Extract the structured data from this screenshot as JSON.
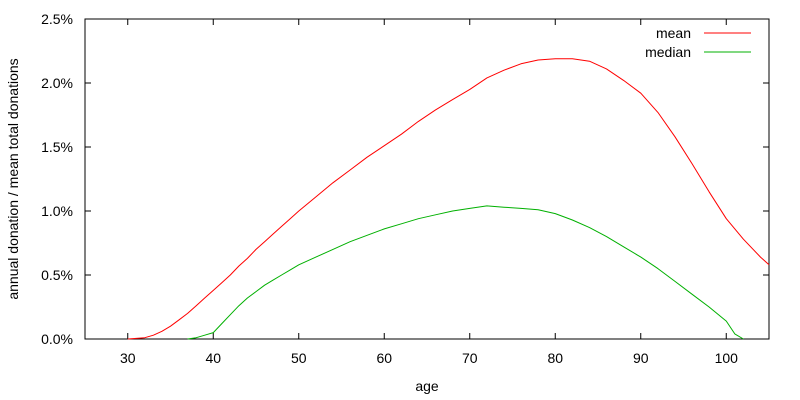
{
  "chart_data": {
    "type": "line",
    "title": "",
    "xlabel": "age",
    "ylabel": "annual donation / mean total donations",
    "xlim": [
      25,
      105
    ],
    "ylim": [
      0,
      2.5
    ],
    "x_ticks": [
      30,
      40,
      50,
      60,
      70,
      80,
      90,
      100
    ],
    "x_tick_labels": [
      "30",
      "40",
      "50",
      "60",
      "70",
      "80",
      "90",
      "100"
    ],
    "y_ticks": [
      0,
      0.5,
      1.0,
      1.5,
      2.0,
      2.5
    ],
    "y_tick_labels": [
      "0.0%",
      "0.5%",
      "1.0%",
      "1.5%",
      "2.0%",
      "2.5%"
    ],
    "grid": false,
    "legend_position": "top-right",
    "series": [
      {
        "name": "mean",
        "color": "#ff0000",
        "x": [
          30,
          31,
          32,
          33,
          34,
          35,
          36,
          37,
          38,
          39,
          40,
          41,
          42,
          43,
          44,
          45,
          46,
          47,
          48,
          49,
          50,
          52,
          54,
          56,
          58,
          60,
          62,
          64,
          66,
          68,
          70,
          72,
          74,
          76,
          78,
          80,
          81,
          82,
          84,
          86,
          88,
          90,
          92,
          94,
          96,
          98,
          100,
          102,
          104,
          105
        ],
        "values": [
          0.0,
          0.005,
          0.01,
          0.03,
          0.06,
          0.1,
          0.15,
          0.2,
          0.26,
          0.32,
          0.38,
          0.44,
          0.5,
          0.57,
          0.63,
          0.7,
          0.76,
          0.82,
          0.88,
          0.94,
          1.0,
          1.11,
          1.22,
          1.32,
          1.42,
          1.51,
          1.6,
          1.7,
          1.79,
          1.87,
          1.95,
          2.04,
          2.1,
          2.15,
          2.18,
          2.19,
          2.19,
          2.19,
          2.17,
          2.11,
          2.02,
          1.92,
          1.77,
          1.58,
          1.37,
          1.15,
          0.94,
          0.78,
          0.64,
          0.58
        ]
      },
      {
        "name": "median",
        "color": "#00b000",
        "x": [
          37,
          38,
          39,
          40,
          41,
          42,
          43,
          44,
          45,
          46,
          47,
          48,
          49,
          50,
          52,
          54,
          56,
          58,
          60,
          62,
          64,
          66,
          68,
          70,
          72,
          74,
          76,
          78,
          80,
          82,
          84,
          86,
          88,
          90,
          92,
          94,
          96,
          98,
          100,
          101,
          102
        ],
        "values": [
          0.0,
          0.01,
          0.03,
          0.05,
          0.12,
          0.19,
          0.26,
          0.32,
          0.37,
          0.42,
          0.46,
          0.5,
          0.54,
          0.58,
          0.64,
          0.7,
          0.76,
          0.81,
          0.86,
          0.9,
          0.94,
          0.97,
          1.0,
          1.02,
          1.04,
          1.03,
          1.02,
          1.01,
          0.98,
          0.93,
          0.87,
          0.8,
          0.72,
          0.64,
          0.55,
          0.45,
          0.35,
          0.25,
          0.14,
          0.04,
          0.0
        ]
      }
    ]
  }
}
